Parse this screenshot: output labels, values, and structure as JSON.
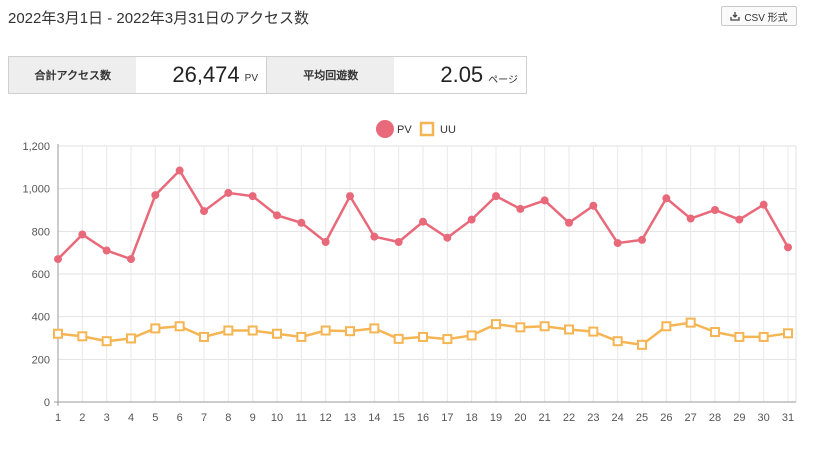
{
  "header": {
    "title": "2022年3月1日 - 2022年3月31日のアクセス数",
    "csv_label": "CSV 形式"
  },
  "stats": {
    "total_label": "合計アクセス数",
    "total_value": "26,474",
    "total_unit": "PV",
    "avg_label": "平均回遊数",
    "avg_value": "2.05",
    "avg_unit": "ページ"
  },
  "colors": {
    "pv": "#e8697a",
    "uu": "#f5b553",
    "weekday": "#555555",
    "saturday": "#1e88e5",
    "sunday": "#e53935"
  },
  "chart_data": {
    "type": "line",
    "x": [
      1,
      2,
      3,
      4,
      5,
      6,
      7,
      8,
      9,
      10,
      11,
      12,
      13,
      14,
      15,
      16,
      17,
      18,
      19,
      20,
      21,
      22,
      23,
      24,
      25,
      26,
      27,
      28,
      29,
      30,
      31
    ],
    "saturdays": [
      5,
      12,
      19,
      26
    ],
    "sundays": [
      6,
      13,
      20,
      27
    ],
    "series": [
      {
        "name": "PV",
        "marker": "circle",
        "values": [
          670,
          785,
          710,
          670,
          970,
          1085,
          895,
          980,
          965,
          875,
          840,
          750,
          965,
          775,
          750,
          845,
          770,
          855,
          965,
          905,
          945,
          840,
          920,
          745,
          760,
          955,
          860,
          900,
          855,
          925,
          725
        ]
      },
      {
        "name": "UU",
        "marker": "square",
        "values": [
          320,
          308,
          285,
          298,
          345,
          355,
          305,
          335,
          335,
          320,
          305,
          335,
          332,
          345,
          296,
          305,
          295,
          312,
          365,
          350,
          355,
          340,
          330,
          285,
          268,
          355,
          372,
          328,
          305,
          305,
          322
        ]
      }
    ],
    "ylim": [
      0,
      1200
    ],
    "yticks": [
      "0",
      "200",
      "400",
      "600",
      "800",
      "1,000",
      "1,200"
    ],
    "legend": "top-center",
    "grid": true
  }
}
